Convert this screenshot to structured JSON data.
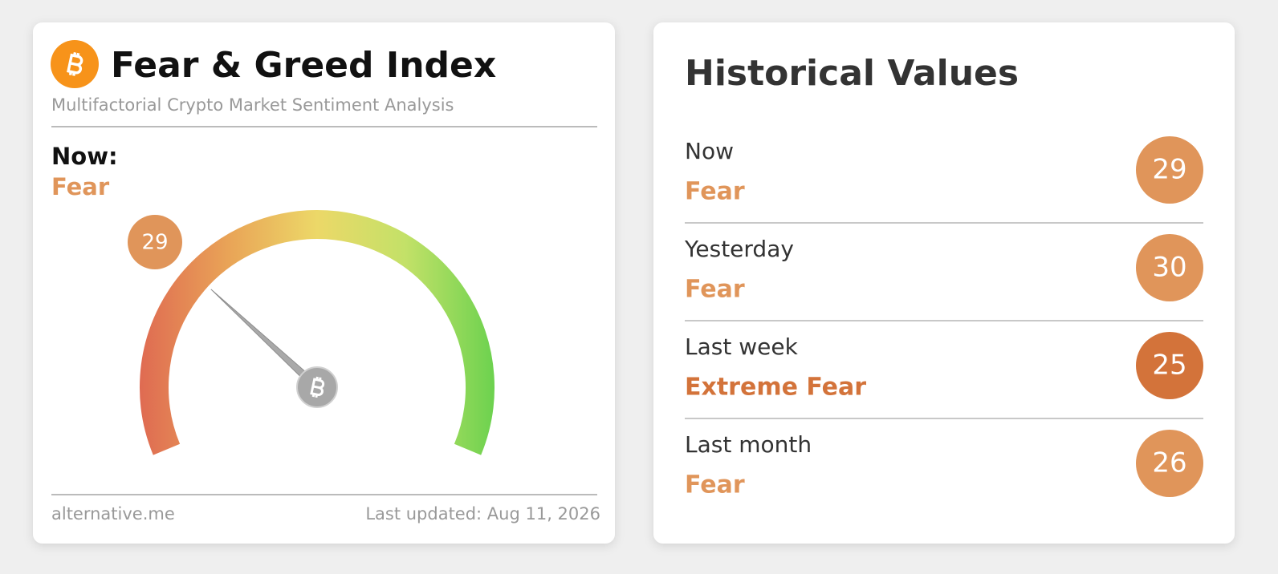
{
  "header": {
    "title": "Fear & Greed Index",
    "subtitle": "Multifactorial Crypto Market Sentiment Analysis"
  },
  "now": {
    "label": "Now:",
    "status": "Fear",
    "color": "#e0955a"
  },
  "gauge": {
    "value": 29,
    "lim": [
      0,
      100
    ],
    "color": "#e0955a"
  },
  "footer": {
    "source": "alternative.me",
    "updated": "Last updated: Aug 11, 2026"
  },
  "history": {
    "title": "Historical Values",
    "rows": [
      {
        "period": "Now",
        "status": "Fear",
        "value": 29,
        "color": "#e0955a"
      },
      {
        "period": "Yesterday",
        "status": "Fear",
        "value": 30,
        "color": "#e0955a"
      },
      {
        "period": "Last week",
        "status": "Extreme Fear",
        "value": 25,
        "color": "#d3733a"
      },
      {
        "period": "Last month",
        "status": "Fear",
        "value": 26,
        "color": "#e0955a"
      }
    ]
  }
}
